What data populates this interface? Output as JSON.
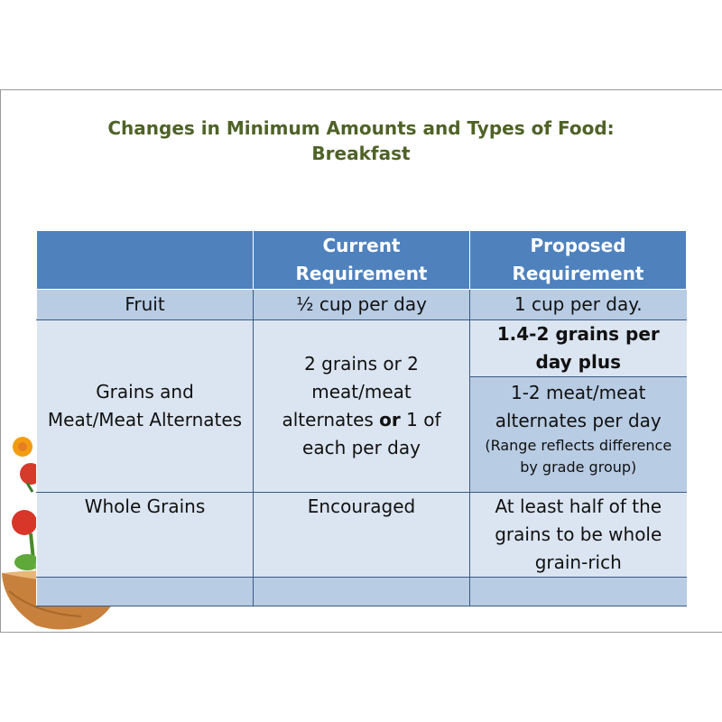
{
  "title": {
    "line1": "Changes in Minimum Amounts and Types of Food:",
    "line2": "Breakfast"
  },
  "table": {
    "headers": [
      "",
      "Current Requirement",
      "Proposed Requirement"
    ],
    "header_lines": {
      "current": [
        "Current",
        "Requirement"
      ],
      "proposed": [
        "Proposed",
        "Requirement"
      ]
    },
    "fruit": {
      "label": "Fruit",
      "current": "½ cup per day",
      "proposed": "1 cup per day."
    },
    "grains_meat": {
      "label_lines": [
        "Grains and",
        "Meat/Meat Alternates"
      ],
      "current_lines": [
        "2 grains or 2",
        "meat/meat"
      ],
      "current_alt_pre": "alternates ",
      "current_alt_bold": "or",
      "current_alt_post": " 1 of",
      "current_last": "each per day",
      "proposed_grains_lines": [
        "1.4-2 grains per",
        "day plus"
      ],
      "proposed_meat_lines": [
        "1-2 meat/meat",
        "alternates per day"
      ],
      "proposed_note_lines": [
        "(Range reflects difference",
        "by grade group)"
      ]
    },
    "whole_grains": {
      "label": "Whole Grains",
      "current": "Encouraged",
      "proposed_lines": [
        "At least half of the",
        "grains to be whole",
        "grain-rich"
      ]
    }
  },
  "colors": {
    "title": "#4f6228",
    "header_bg": "#4f81bd",
    "row_dark": "#b8cce4",
    "row_light": "#dbe5f1"
  },
  "icons": [
    "fruit-vegetables-bowl-icon"
  ]
}
